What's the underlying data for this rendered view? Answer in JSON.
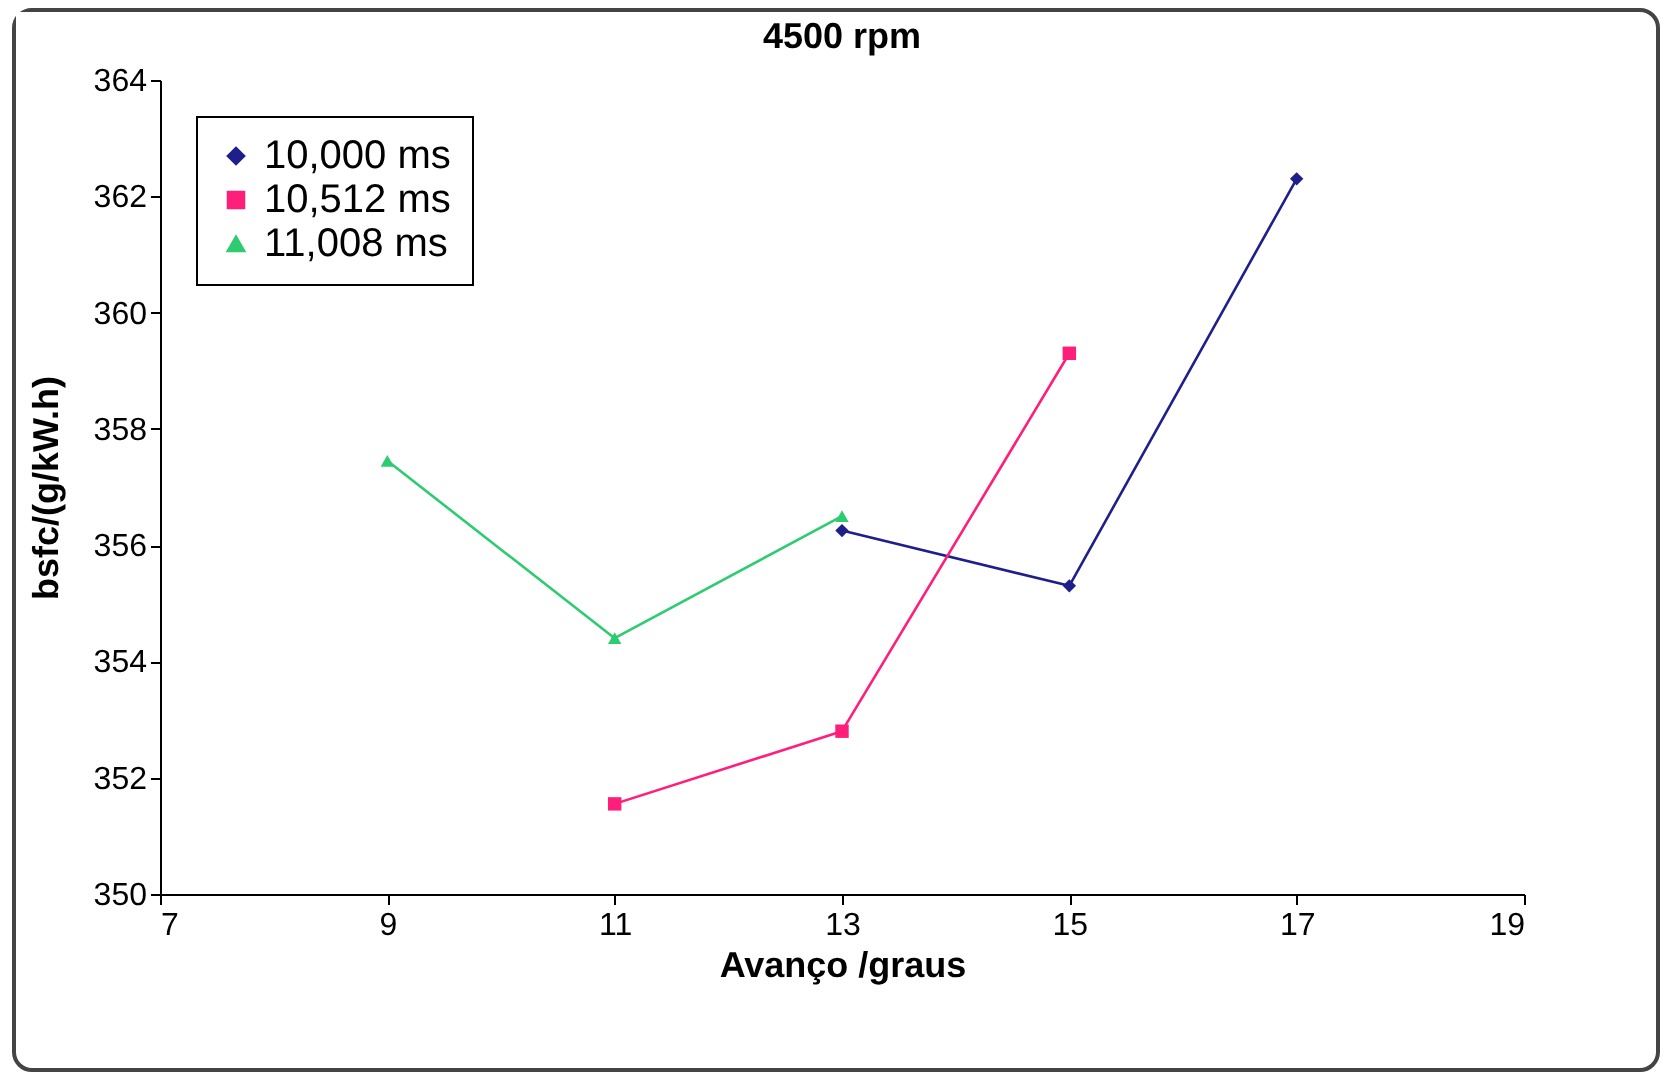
{
  "chart_data": {
    "type": "line",
    "title": "4500 rpm",
    "xlabel": "Avanço /graus",
    "ylabel": "bsfc/(g/kW.h)",
    "xlim": [
      7,
      19
    ],
    "xticks": [
      7,
      9,
      11,
      13,
      15,
      17,
      19
    ],
    "ylim": [
      350,
      364
    ],
    "yticks": [
      350,
      352,
      354,
      356,
      358,
      360,
      362,
      364
    ],
    "grid": false,
    "legend": "top left",
    "series": [
      {
        "name": "10,000 ms",
        "color": "#1f1f8c",
        "marker": "diamond",
        "x": [
          13,
          15,
          17
        ],
        "values": [
          356.25,
          355.3,
          362.3
        ]
      },
      {
        "name": "10,512 ms",
        "color": "#ff1f7a",
        "marker": "square",
        "x": [
          11,
          13,
          15
        ],
        "values": [
          351.55,
          352.8,
          359.3
        ]
      },
      {
        "name": "11,008 ms",
        "color": "#2ecc71",
        "marker": "triangle",
        "x": [
          9,
          11,
          13
        ],
        "values": [
          357.45,
          354.4,
          356.5
        ]
      }
    ]
  }
}
